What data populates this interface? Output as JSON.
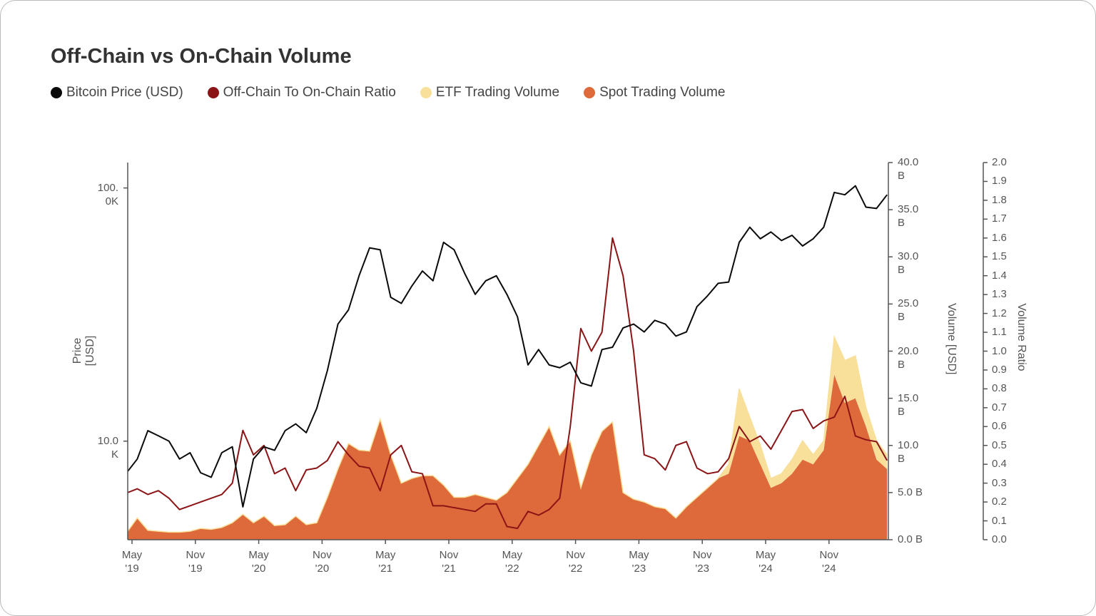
{
  "title": "Off-Chain vs On-Chain Volume",
  "legend": [
    {
      "label": "Bitcoin Price (USD)",
      "color": "#0a0a0a"
    },
    {
      "label": "Off-Chain To On-Chain Ratio",
      "color": "#8b1416"
    },
    {
      "label": "ETF Trading Volume",
      "color": "#f8e09a"
    },
    {
      "label": "Spot Trading Volume",
      "color": "#de6a3b"
    }
  ],
  "chart_data": {
    "type": "line+stacked-area",
    "title": "Off-Chain vs On-Chain Volume",
    "axes": {
      "x": {
        "ticks": [
          "May '19",
          "Nov '19",
          "May '20",
          "Nov '20",
          "May '21",
          "Nov '21",
          "May '22",
          "Nov '22",
          "May '23",
          "Nov '23",
          "May '24",
          "Nov '24"
        ],
        "tick_dates": [
          "2019-05",
          "2019-11",
          "2020-05",
          "2020-11",
          "2021-05",
          "2021-11",
          "2022-05",
          "2022-11",
          "2023-05",
          "2023-11",
          "2024-05",
          "2024-11"
        ]
      },
      "price": {
        "label": "Price [USD]",
        "scale": "log",
        "ticks": [
          "100.0K",
          "10.0K"
        ],
        "tick_values": [
          100000,
          10000
        ],
        "range": [
          4080,
          126000
        ],
        "side": "left"
      },
      "volume": {
        "label": "Volume [USD]",
        "ticks": [
          "40.0 B",
          "35.0 B",
          "30.0 B",
          "25.0 B",
          "20.0 B",
          "15.0 B",
          "10.0 B",
          "5.0 B",
          "0.0 B"
        ],
        "tick_values": [
          40,
          35,
          30,
          25,
          20,
          15,
          10,
          5,
          0
        ],
        "range": [
          0,
          40
        ],
        "unit": "B USD",
        "side": "right"
      },
      "ratio": {
        "label": "Volume Ratio",
        "ticks": [
          "2.0",
          "1.9",
          "1.8",
          "1.7",
          "1.6",
          "1.5",
          "1.4",
          "1.3",
          "1.2",
          "1.1",
          "1.0",
          "0.9",
          "0.8",
          "0.7",
          "0.6",
          "0.5",
          "0.4",
          "0.3",
          "0.2",
          "0.1",
          "0.0"
        ],
        "range": [
          0,
          2
        ],
        "side": "right"
      }
    },
    "grid": false,
    "legend_position": "top-left",
    "dates": [
      "2019-04",
      "2019-05",
      "2019-06",
      "2019-07",
      "2019-08",
      "2019-09",
      "2019-10",
      "2019-11",
      "2019-12",
      "2020-01",
      "2020-02",
      "2020-03",
      "2020-04",
      "2020-05",
      "2020-06",
      "2020-07",
      "2020-08",
      "2020-09",
      "2020-10",
      "2020-11",
      "2020-12",
      "2021-01",
      "2021-02",
      "2021-03",
      "2021-04",
      "2021-05",
      "2021-06",
      "2021-07",
      "2021-08",
      "2021-09",
      "2021-10",
      "2021-11",
      "2021-12",
      "2022-01",
      "2022-02",
      "2022-03",
      "2022-04",
      "2022-05",
      "2022-06",
      "2022-07",
      "2022-08",
      "2022-09",
      "2022-10",
      "2022-11",
      "2022-12",
      "2023-01",
      "2023-02",
      "2023-03",
      "2023-04",
      "2023-05",
      "2023-06",
      "2023-07",
      "2023-08",
      "2023-09",
      "2023-10",
      "2023-11",
      "2023-12",
      "2024-01",
      "2024-02",
      "2024-03",
      "2024-04",
      "2024-05",
      "2024-06",
      "2024-07",
      "2024-08",
      "2024-09",
      "2024-10",
      "2024-11",
      "2024-12",
      "2025-01",
      "2025-02",
      "2025-03",
      "2025-04"
    ],
    "series": [
      {
        "name": "Bitcoin Price (USD)",
        "axis": "price",
        "type": "line",
        "color": "#0a0a0a",
        "values": [
          7600,
          8500,
          11000,
          10500,
          10000,
          8500,
          9000,
          7500,
          7200,
          9000,
          9500,
          5500,
          8500,
          9500,
          9200,
          11000,
          11700,
          10800,
          13500,
          19000,
          29000,
          33000,
          45000,
          58000,
          57000,
          37000,
          35000,
          41000,
          47000,
          43000,
          61000,
          57000,
          46000,
          38000,
          43000,
          45000,
          38000,
          31000,
          20000,
          23000,
          20000,
          19500,
          20500,
          17000,
          16500,
          23000,
          23500,
          28000,
          29000,
          27000,
          30000,
          29000,
          26000,
          27000,
          34000,
          37500,
          42000,
          42500,
          61000,
          70000,
          63000,
          67000,
          62000,
          65000,
          59000,
          63000,
          70000,
          96000,
          94000,
          102000,
          84000,
          83000,
          94000
        ]
      },
      {
        "name": "Off-Chain To On-Chain Ratio",
        "axis": "ratio",
        "type": "line",
        "color": "#8b1416",
        "values": [
          0.25,
          0.27,
          0.24,
          0.26,
          0.22,
          0.16,
          0.18,
          0.2,
          0.22,
          0.24,
          0.3,
          0.58,
          0.45,
          0.5,
          0.35,
          0.38,
          0.26,
          0.37,
          0.38,
          0.42,
          0.52,
          0.45,
          0.39,
          0.38,
          0.26,
          0.45,
          0.5,
          0.36,
          0.35,
          0.18,
          0.18,
          0.17,
          0.16,
          0.15,
          0.19,
          0.19,
          0.07,
          0.06,
          0.15,
          0.13,
          0.16,
          0.22,
          0.6,
          1.12,
          1.0,
          1.1,
          1.6,
          1.4,
          1.0,
          0.45,
          0.43,
          0.37,
          0.5,
          0.52,
          0.38,
          0.35,
          0.36,
          0.43,
          0.6,
          0.52,
          0.55,
          0.48,
          0.58,
          0.68,
          0.69,
          0.59,
          0.63,
          0.65,
          0.76,
          0.55,
          0.53,
          0.52,
          0.42
        ]
      },
      {
        "name": "Spot Trading Volume",
        "axis": "volume",
        "type": "area",
        "stack": 0,
        "color": "#de6a3b",
        "values": [
          0.9,
          2.3,
          1.0,
          0.9,
          0.8,
          0.8,
          0.9,
          1.2,
          1.1,
          1.3,
          1.8,
          2.7,
          1.8,
          2.5,
          1.5,
          1.6,
          2.5,
          1.6,
          1.8,
          4.5,
          7.5,
          10.2,
          9.5,
          9.4,
          12.8,
          9,
          6,
          6.5,
          6.8,
          6.8,
          5.8,
          4.5,
          4.5,
          4.8,
          4.5,
          4.2,
          5,
          6.5,
          8,
          10,
          12,
          9,
          10.5,
          5.5,
          9,
          11.5,
          12.5,
          5,
          4.3,
          4,
          3.5,
          3.3,
          2.3,
          3.5,
          4.5,
          5.5,
          6.5,
          7,
          11,
          10.5,
          8,
          5.5,
          6,
          7,
          8.5,
          8,
          9.5,
          17.5,
          14.5,
          15,
          12,
          8.5,
          7.5
        ]
      },
      {
        "name": "ETF Trading Volume",
        "axis": "volume",
        "type": "area",
        "stack": 1,
        "color": "#f8e09a",
        "values": [
          0,
          0,
          0,
          0,
          0,
          0,
          0,
          0,
          0,
          0,
          0,
          0,
          0,
          0,
          0,
          0,
          0,
          0,
          0,
          0,
          0,
          0,
          0,
          0,
          0,
          0,
          0,
          0,
          0,
          0,
          0,
          0,
          0,
          0,
          0,
          0,
          0,
          0,
          0,
          0,
          0,
          0,
          0,
          0,
          0,
          0,
          0,
          0,
          0,
          0,
          0,
          0,
          0,
          0,
          0,
          0,
          0,
          1,
          5,
          2.5,
          2,
          1,
          1,
          1.5,
          2,
          1,
          1,
          4,
          4.5,
          4.5,
          2,
          2,
          1.5
        ]
      }
    ]
  }
}
